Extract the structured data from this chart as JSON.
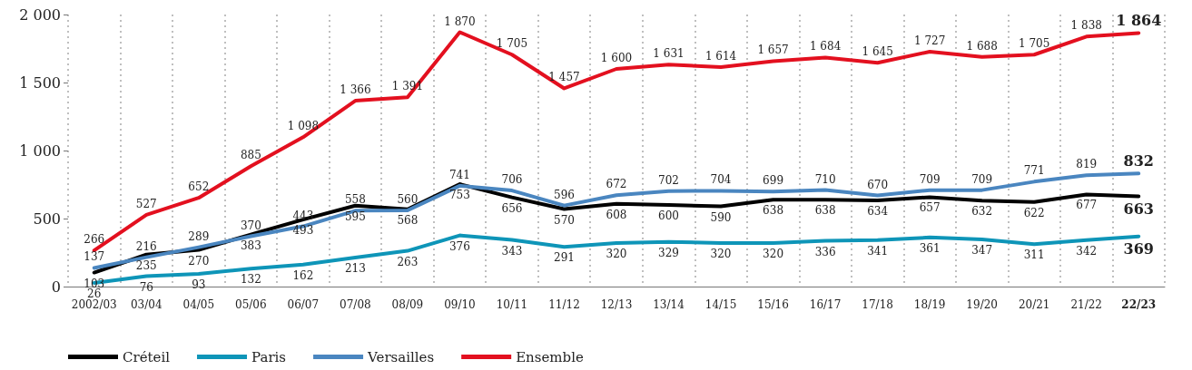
{
  "chart_data": {
    "type": "line",
    "categories": [
      "2002/03",
      "03/04",
      "04/05",
      "05/06",
      "06/07",
      "07/08",
      "08/09",
      "09/10",
      "10/11",
      "11/12",
      "12/13",
      "13/14",
      "14/15",
      "15/16",
      "16/17",
      "17/18",
      "18/19",
      "19/20",
      "20/21",
      "21/22",
      "22/23"
    ],
    "series": [
      {
        "name": "Créteil",
        "color": "#000000",
        "values": [
          103,
          235,
          270,
          383,
          493,
          595,
          568,
          753,
          656,
          570,
          608,
          600,
          590,
          638,
          638,
          634,
          657,
          632,
          622,
          677,
          663
        ]
      },
      {
        "name": "Paris",
        "color": "#0e95b8",
        "values": [
          26,
          76,
          93,
          132,
          162,
          213,
          263,
          376,
          343,
          291,
          320,
          329,
          320,
          320,
          336,
          341,
          361,
          347,
          311,
          342,
          369
        ]
      },
      {
        "name": "Versailles",
        "color": "#4a86c0",
        "values": [
          137,
          216,
          289,
          370,
          443,
          558,
          560,
          741,
          706,
          596,
          672,
          702,
          704,
          699,
          710,
          670,
          709,
          709,
          771,
          819,
          832
        ]
      },
      {
        "name": "Ensemble",
        "color": "#e3101f",
        "values": [
          266,
          527,
          652,
          885,
          1098,
          1366,
          1391,
          1870,
          1705,
          1457,
          1600,
          1631,
          1614,
          1657,
          1684,
          1645,
          1727,
          1688,
          1705,
          1838,
          1864
        ],
        "value_labels": [
          "266",
          "527",
          "652",
          "885",
          "1 098",
          "1 366",
          "1 391",
          "1 870",
          "1 705",
          "1 457",
          "1 600",
          "1 631",
          "1 614",
          "1 657",
          "1 684",
          "1 645",
          "1 727",
          "1 688",
          "1 705",
          "1 838",
          "1 864"
        ]
      }
    ],
    "ylim": [
      0,
      2000
    ],
    "yticks": [
      0,
      500,
      {
        "value": 1000,
        "label": "1 000"
      },
      {
        "value": 1500,
        "label": "1 500"
      },
      {
        "value": 2000,
        "label": "2 000"
      }
    ],
    "grid": "x",
    "legend": "bottom left",
    "marker": "none",
    "line_style": "solid",
    "data_labels": true
  }
}
